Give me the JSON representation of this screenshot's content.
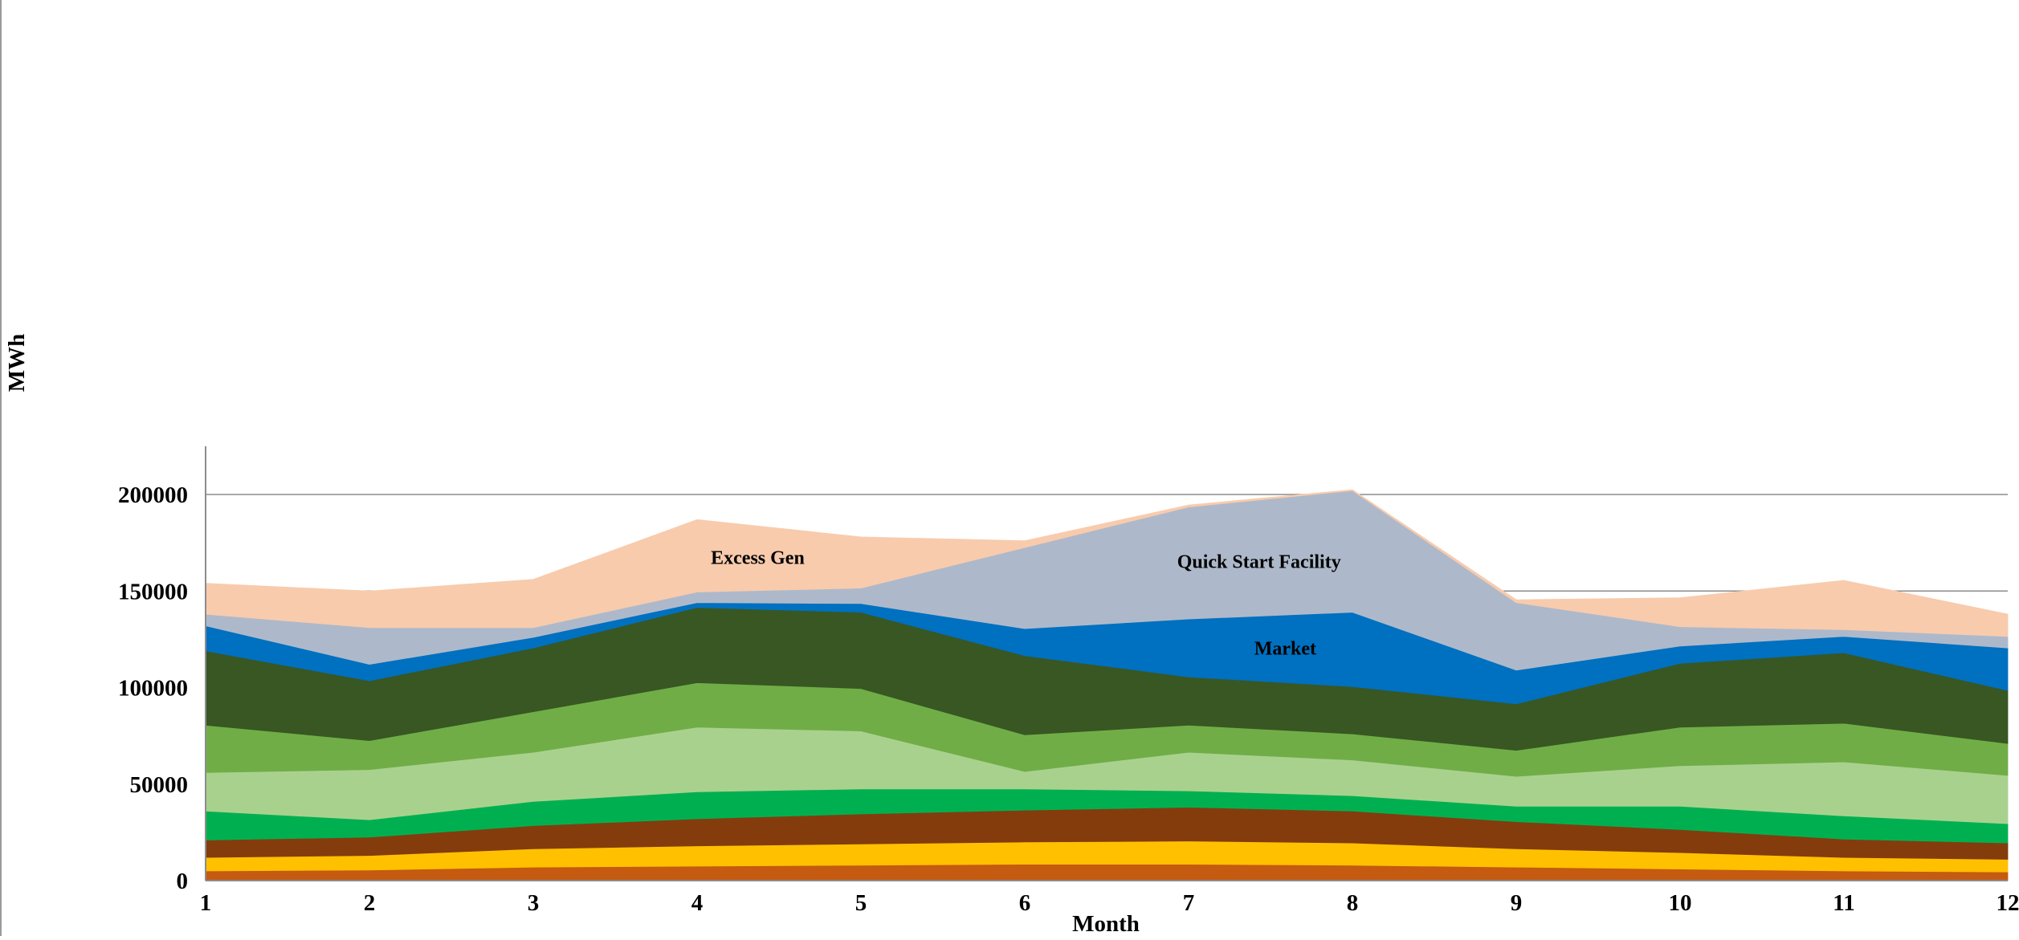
{
  "chart_data": {
    "type": "area",
    "stacked": true,
    "title": "",
    "xlabel": "Month",
    "ylabel": "MWh",
    "x": [
      1,
      2,
      3,
      4,
      5,
      6,
      7,
      8,
      9,
      10,
      11,
      12
    ],
    "ylim": [
      0,
      225000
    ],
    "yticks": [
      0,
      50000,
      100000,
      150000,
      200000
    ],
    "ytick_labels": [
      "0",
      "50000",
      "100000",
      "150000",
      "200000"
    ],
    "grid": "horizontal",
    "legend": "none",
    "series": [
      {
        "color": "#C55A11",
        "values": [
          5000,
          5500,
          7000,
          7500,
          8000,
          8500,
          8500,
          8000,
          7000,
          6000,
          5000,
          4500
        ]
      },
      {
        "color": "#FFC000",
        "values": [
          7000,
          7500,
          9500,
          10500,
          11000,
          11500,
          12000,
          11500,
          9500,
          8500,
          7000,
          6500
        ]
      },
      {
        "color": "#843C0C",
        "values": [
          9000,
          9500,
          12000,
          14000,
          15500,
          16500,
          17500,
          16500,
          14000,
          12000,
          9500,
          8500
        ]
      },
      {
        "color": "#00B050",
        "values": [
          15000,
          9000,
          12500,
          14000,
          13000,
          11000,
          8500,
          8000,
          8000,
          12000,
          12000,
          10000
        ]
      },
      {
        "color": "#A9D18E",
        "values": [
          20000,
          26000,
          25500,
          33500,
          30000,
          9000,
          20000,
          18500,
          15500,
          21000,
          28000,
          25000
        ]
      },
      {
        "color": "#70AD47",
        "values": [
          24500,
          15000,
          21000,
          23000,
          22000,
          19000,
          14000,
          13500,
          13500,
          20000,
          20000,
          16500
        ]
      },
      {
        "color": "#385723",
        "values": [
          38500,
          31000,
          33000,
          39000,
          39500,
          41000,
          25000,
          24500,
          24000,
          33000,
          36500,
          27500
        ]
      },
      {
        "color": "#0070C0",
        "values": [
          13000,
          8500,
          5500,
          2500,
          4500,
          14000,
          30000,
          38500,
          17500,
          9000,
          8500,
          22000
        ]
      },
      {
        "name": "Quick Start Facility",
        "color": "#ADB9CA",
        "values": [
          6000,
          19000,
          5000,
          5500,
          8000,
          42000,
          58000,
          63000,
          35000,
          10000,
          3500,
          6000
        ]
      },
      {
        "name": "Excess Gen",
        "color": "#F8CBAD",
        "values": [
          16000,
          19000,
          25000,
          37500,
          26500,
          3500,
          1000,
          500,
          1500,
          15000,
          25500,
          11500
        ]
      }
    ],
    "annotations": [
      {
        "text": "Excess Gen",
        "x": 4.37,
        "y": 164000
      },
      {
        "text": "Quick Start Facility",
        "x": 7.43,
        "y": 162000
      },
      {
        "text": "Market",
        "x": 7.59,
        "y": 117000
      }
    ]
  }
}
